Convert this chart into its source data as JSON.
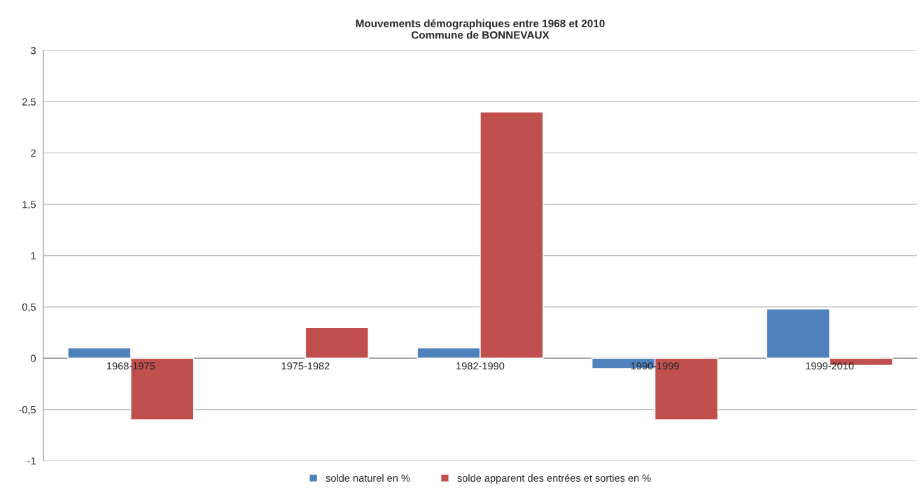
{
  "chart_data": {
    "type": "bar",
    "title": "Mouvements démographiques entre 1968 et 2010\nCommune de BONNEVAUX",
    "categories": [
      "1968-1975",
      "1975-1982",
      "1982-1990",
      "1990-1999",
      "1999-2010"
    ],
    "series": [
      {
        "name": "solde naturel en %",
        "color": "#4f81bd",
        "values": [
          0.1,
          null,
          0.1,
          -0.1,
          0.48
        ]
      },
      {
        "name": "solde apparent des entrées et sorties en %",
        "color": "#c0504d",
        "values": [
          -0.6,
          0.3,
          2.4,
          -0.6,
          -0.07
        ]
      }
    ],
    "ylim": [
      -1,
      3
    ],
    "yticks": [
      -1,
      {
        "value": -0.5,
        "label": "-0,5"
      },
      0,
      {
        "value": 0.5,
        "label": "0,5"
      },
      1,
      {
        "value": 1.5,
        "label": "1,5"
      },
      2,
      {
        "value": 2.5,
        "label": "2,5"
      },
      3
    ],
    "grid": "y",
    "legend": "bottom"
  }
}
